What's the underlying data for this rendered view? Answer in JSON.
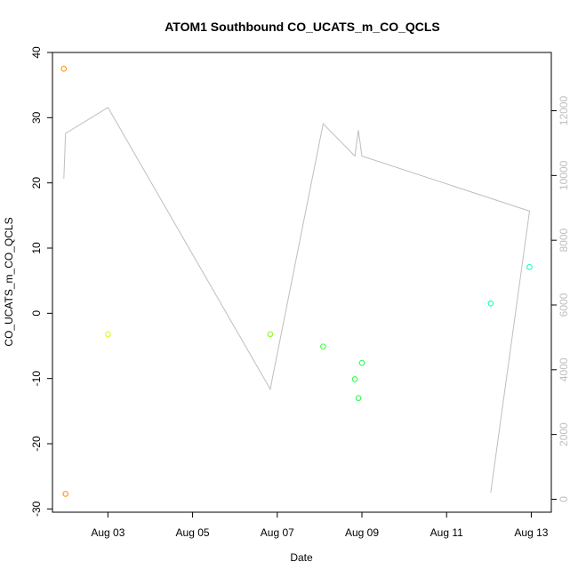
{
  "chart_data": {
    "type": "scatter",
    "title": "ATOM1 Southbound CO_UCATS_m_CO_QCLS",
    "xlabel": "Date",
    "ylabel": "CO_UCATS_m_CO_QCLS",
    "x_ticks": [
      "Aug 03",
      "Aug 05",
      "Aug 07",
      "Aug 09",
      "Aug 11",
      "Aug 13"
    ],
    "y_ticks": [
      "40",
      "30",
      "20",
      "10",
      "0",
      "-10",
      "-20",
      "-30"
    ],
    "y2_ticks": [
      "0",
      "2000",
      "4000",
      "6000",
      "8000",
      "10000",
      "12000"
    ],
    "xlim": [
      "2016-08-01T16:34",
      "2016-08-13T11:22"
    ],
    "ylim": [
      -30.5,
      40
    ],
    "y2lim": [
      -400,
      13800
    ],
    "grid": false,
    "legend": "none",
    "scatter_points": [
      {
        "x": "2016-08-01T23:00",
        "y": 37.5,
        "color": "#ff8c00"
      },
      {
        "x": "2016-08-02T00:00",
        "y": -27.7,
        "color": "#ff8c00"
      },
      {
        "x": "2016-08-03T00:00",
        "y": -3.2,
        "color": "#d4ff00"
      },
      {
        "x": "2016-08-06T20:00",
        "y": -3.2,
        "color": "#7cff10"
      },
      {
        "x": "2016-08-08T02:00",
        "y": -5.1,
        "color": "#33ff33"
      },
      {
        "x": "2016-08-08T20:00",
        "y": -10.1,
        "color": "#1aff40"
      },
      {
        "x": "2016-08-08T22:00",
        "y": -13.0,
        "color": "#1aff40"
      },
      {
        "x": "2016-08-09T00:00",
        "y": -7.6,
        "color": "#1aff40"
      },
      {
        "x": "2016-08-12T01:00",
        "y": 1.5,
        "color": "#00ffa0"
      },
      {
        "x": "2016-08-12T23:00",
        "y": 7.1,
        "color": "#00ffbf"
      }
    ],
    "line_series": {
      "color": "#bebebe",
      "axis": "right",
      "points": [
        {
          "x": "2016-08-01T23:00",
          "y": 9900
        },
        {
          "x": "2016-08-02T00:00",
          "y": 11300
        },
        {
          "x": "2016-08-03T00:00",
          "y": 12100
        },
        {
          "x": "2016-08-06T20:00",
          "y": 3400
        },
        {
          "x": "2016-08-08T02:00",
          "y": 11600
        },
        {
          "x": "2016-08-08T20:00",
          "y": 10600
        },
        {
          "x": "2016-08-08T22:00",
          "y": 11400
        },
        {
          "x": "2016-08-09T00:00",
          "y": 10600
        },
        {
          "x": "2016-08-12T23:00",
          "y": 8900
        },
        {
          "x": "2016-08-12T01:00",
          "y": 200
        }
      ]
    }
  }
}
